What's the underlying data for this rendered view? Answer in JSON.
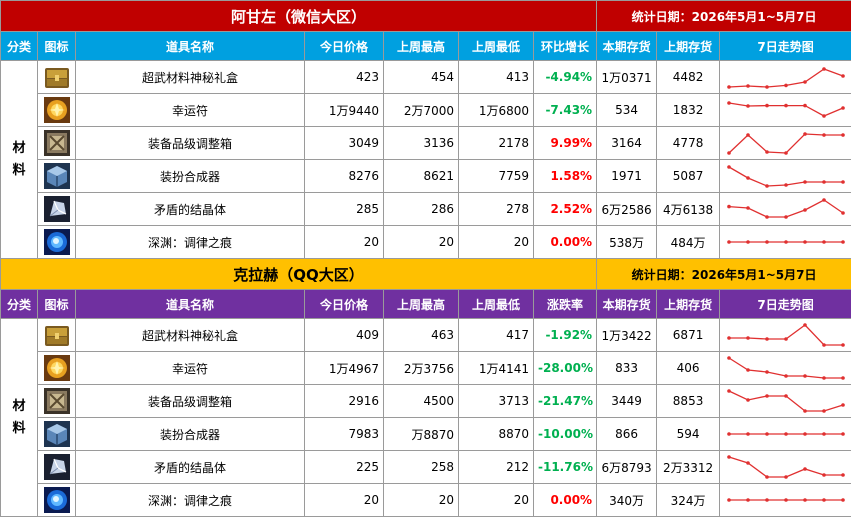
{
  "sections": [
    {
      "title": "阿甘左（微信大区）",
      "date_range": "统计日期：2026年5月1~5月7日",
      "headers": [
        "分类",
        "图标",
        "道具名称",
        "今日价格",
        "上周最高",
        "上周最低",
        "环比增长",
        "本期存货",
        "上期存货",
        "7日走势图"
      ],
      "category": "材料",
      "rows": [
        {
          "icon": "chest-icon",
          "name": "超武材料神秘礼盒",
          "today": "423",
          "high": "454",
          "low": "413",
          "change": "-4.94%",
          "stock": "1万0371",
          "prev_stock": "4482",
          "trend": [
            0.0,
            0.05,
            0.0,
            0.08,
            0.25,
            0.9,
            0.55
          ]
        },
        {
          "icon": "charm-icon",
          "name": "幸运符",
          "today": "1万9440",
          "high": "2万7000",
          "low": "1万6800",
          "change": "-7.43%",
          "stock": "534",
          "prev_stock": "1832",
          "trend": [
            0.85,
            0.7,
            0.72,
            0.72,
            0.72,
            0.2,
            0.6
          ]
        },
        {
          "icon": "box-icon",
          "name": "装备品级调整箱",
          "today": "3049",
          "high": "3136",
          "low": "2178",
          "change": "9.99%",
          "stock": "3164",
          "prev_stock": "4778",
          "trend": [
            0.0,
            0.9,
            0.05,
            0.0,
            0.95,
            0.9,
            0.9
          ]
        },
        {
          "icon": "cube-icon",
          "name": "装扮合成器",
          "today": "8276",
          "high": "8621",
          "low": "7759",
          "change": "1.58%",
          "stock": "1971",
          "prev_stock": "5087",
          "trend": [
            0.95,
            0.4,
            0.0,
            0.05,
            0.2,
            0.2,
            0.2
          ]
        },
        {
          "icon": "crystal-icon",
          "name": "矛盾的结晶体",
          "today": "285",
          "high": "286",
          "low": "278",
          "change": "2.52%",
          "stock": "6万2586",
          "prev_stock": "4万6138",
          "trend": [
            0.62,
            0.55,
            0.1,
            0.1,
            0.45,
            0.95,
            0.3
          ]
        },
        {
          "icon": "orb-icon",
          "name": "深渊：调律之痕",
          "today": "20",
          "high": "20",
          "low": "20",
          "change": "0.00%",
          "stock": "538万",
          "prev_stock": "484万",
          "trend": [
            0.5,
            0.5,
            0.5,
            0.5,
            0.5,
            0.5,
            0.5
          ]
        }
      ]
    },
    {
      "title": "克拉赫（QQ大区）",
      "date_range": "统计日期：2026年5月1~5月7日",
      "headers": [
        "分类",
        "图标",
        "道具名称",
        "今日价格",
        "上周最高",
        "上周最低",
        "涨跌率",
        "本期存货",
        "上期存货",
        "7日走势图"
      ],
      "category": "材料",
      "rows": [
        {
          "icon": "chest-icon",
          "name": "超武材料神秘礼盒",
          "today": "409",
          "high": "463",
          "low": "417",
          "change": "-1.92%",
          "stock": "1万3422",
          "prev_stock": "6871",
          "trend": [
            0.35,
            0.35,
            0.3,
            0.3,
            1.0,
            0.0,
            0.0
          ]
        },
        {
          "icon": "charm-icon",
          "name": "幸运符",
          "today": "1万4967",
          "high": "2万3756",
          "low": "1万4141",
          "change": "-28.00%",
          "stock": "833",
          "prev_stock": "406",
          "trend": [
            1.0,
            0.4,
            0.3,
            0.1,
            0.1,
            0.0,
            0.0
          ]
        },
        {
          "icon": "box-icon",
          "name": "装备品级调整箱",
          "today": "2916",
          "high": "4500",
          "low": "3713",
          "change": "-21.47%",
          "stock": "3449",
          "prev_stock": "8853",
          "trend": [
            1.0,
            0.55,
            0.75,
            0.75,
            0.0,
            0.0,
            0.3
          ]
        },
        {
          "icon": "cube-icon",
          "name": "装扮合成器",
          "today": "7983",
          "high": "万8870",
          "low": "8870",
          "change": "-10.00%",
          "stock": "866",
          "prev_stock": "594",
          "trend": [
            0.5,
            0.5,
            0.5,
            0.5,
            0.5,
            0.5,
            0.5
          ]
        },
        {
          "icon": "crystal-icon",
          "name": "矛盾的结晶体",
          "today": "225",
          "high": "258",
          "low": "212",
          "change": "-11.76%",
          "stock": "6万8793",
          "prev_stock": "2万3312",
          "trend": [
            1.0,
            0.7,
            0.0,
            0.0,
            0.4,
            0.1,
            0.1
          ]
        },
        {
          "icon": "orb-icon",
          "name": "深渊：调律之痕",
          "today": "20",
          "high": "20",
          "low": "20",
          "change": "0.00%",
          "stock": "340万",
          "prev_stock": "324万",
          "trend": [
            0.5,
            0.5,
            0.5,
            0.5,
            0.5,
            0.5,
            0.5
          ]
        }
      ]
    }
  ],
  "colors": {
    "section1_title_bg": "#c00000",
    "section1_header_bg": "#00a0e0",
    "section2_title_bg": "#ffc000",
    "section2_header_bg": "#7030a0",
    "positive": "#ff0000",
    "negative": "#00b050",
    "sparkline": "#e03030"
  }
}
